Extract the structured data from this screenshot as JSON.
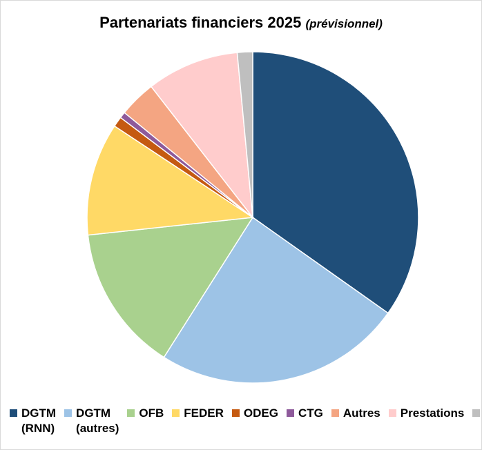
{
  "chart_data": {
    "type": "pie",
    "title": "Partenariats financiers 2025",
    "subtitle": "(prévisionnel)",
    "legend_position": "bottom",
    "slices": [
      {
        "label": "DGTM\n(RNN)",
        "value": 34.8,
        "color": "#1F4E79"
      },
      {
        "label": "DGTM\n(autres)",
        "value": 24.2,
        "color": "#9DC3E6"
      },
      {
        "label": "OFB",
        "value": 14.3,
        "color": "#A9D18E"
      },
      {
        "label": "FEDER",
        "value": 11.0,
        "color": "#FFD966"
      },
      {
        "label": "ODEG",
        "value": 1.0,
        "color": "#C55A11"
      },
      {
        "label": "CTG",
        "value": 0.6,
        "color": "#8E5A9B"
      },
      {
        "label": "Autres",
        "value": 3.6,
        "color": "#F4A582"
      },
      {
        "label": "Prestations",
        "value": 9.0,
        "color": "#FFCCCC"
      },
      {
        "label": "",
        "value": 1.5,
        "color": "#BFBFBF"
      }
    ]
  }
}
